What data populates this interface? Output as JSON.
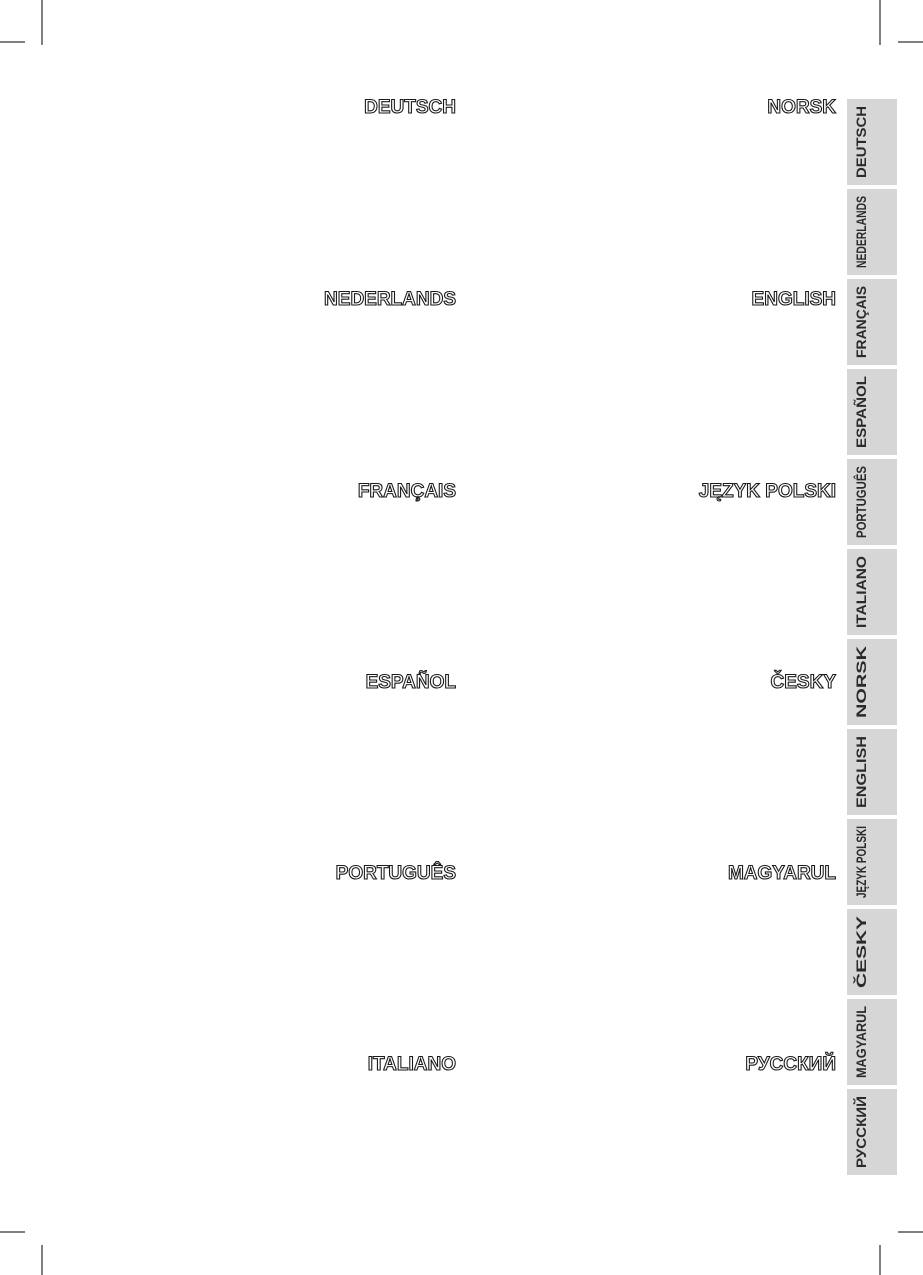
{
  "left_column": [
    "DEUTSCH",
    "NEDERLANDS",
    "FRANÇAIS",
    "ESPAÑOL",
    "PORTUGUÊS",
    "ITALIANO"
  ],
  "right_column": [
    "NORSK",
    "ENGLISH",
    "JĘZYK POLSKI",
    "ČESKY",
    "MAGYARUL",
    "РУССКИЙ"
  ],
  "tabs": [
    "DEUTSCH",
    "NEDERLANDS",
    "FRANÇAIS",
    "ESPAÑOL",
    "PORTUGUÊS",
    "ITALIANO",
    "NORSK",
    "ENGLISH",
    "JĘZYK POLSKI",
    "ČESKY",
    "MAGYARUL",
    "РУССКИЙ"
  ]
}
